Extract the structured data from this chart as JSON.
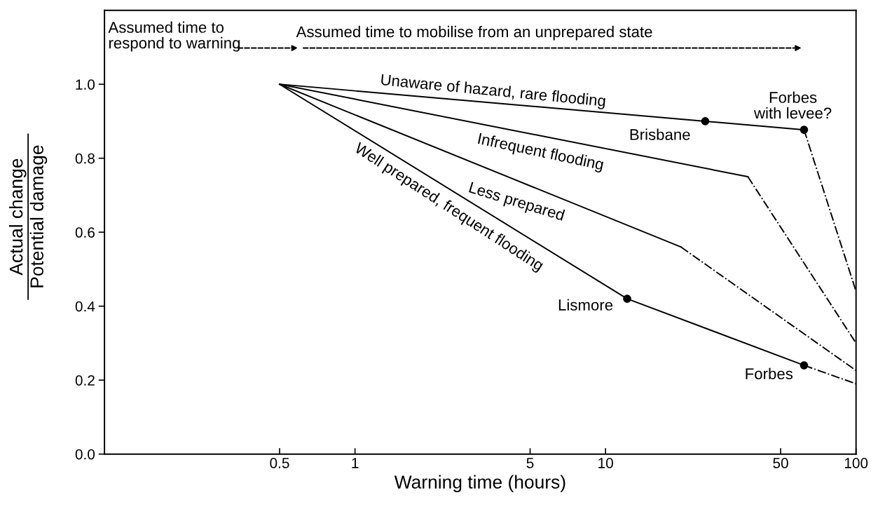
{
  "chart_data": {
    "type": "line",
    "xlabel": "Warning time (hours)",
    "ylabel": "Actual change\nPotential damage",
    "log": "x",
    "xlim": [
      0.1,
      100
    ],
    "xticks": [
      0.5,
      1,
      5,
      10,
      50,
      100
    ],
    "ylim": [
      0,
      1.2
    ],
    "yticks": [
      {
        "value": 0,
        "label": "0.0"
      },
      {
        "value": 0.2,
        "label": "0.2"
      },
      {
        "value": 0.4,
        "label": "0.4"
      },
      {
        "value": 0.6,
        "label": "0.6"
      },
      {
        "value": 0.8,
        "label": "0.8"
      },
      {
        "value": 1.0,
        "label": "1.0"
      }
    ],
    "grid": false,
    "legend": false,
    "series": [
      {
        "color": "#000000",
        "line_style": "solid",
        "x": [
          0.5,
          25,
          62
        ],
        "values": [
          1.0,
          0.9,
          0.877
        ]
      },
      {
        "color": "#000000",
        "line_style": "solid",
        "x": [
          0.5,
          37
        ],
        "values": [
          1.0,
          0.75
        ]
      },
      {
        "color": "#000000",
        "line_style": "solid",
        "x": [
          0.5,
          20
        ],
        "values": [
          1.0,
          0.56
        ]
      },
      {
        "color": "#000000",
        "line_style": "solid",
        "x": [
          0.5,
          12.2,
          62
        ],
        "values": [
          1.0,
          0.42,
          0.24
        ]
      },
      {
        "color": "#000000",
        "line_style": "dashdot",
        "x": [
          62,
          100
        ],
        "values": [
          0.877,
          0.44
        ]
      },
      {
        "color": "#000000",
        "line_style": "dashdot",
        "x": [
          37,
          100
        ],
        "values": [
          0.75,
          0.3
        ]
      },
      {
        "color": "#000000",
        "line_style": "dashdot",
        "x": [
          20,
          100
        ],
        "values": [
          0.56,
          0.226
        ]
      },
      {
        "color": "#000000",
        "line_style": "dashdot",
        "x": [
          62,
          100
        ],
        "values": [
          0.24,
          0.19
        ]
      },
      {
        "type": "scatter",
        "color": "#000000",
        "marker": "circle",
        "x": [
          25,
          62,
          12.2,
          62
        ],
        "values": [
          0.9,
          0.877,
          0.42,
          0.24
        ]
      }
    ],
    "annotations": [
      "Assumed time to\nrespond to warning",
      "Assumed time to mobilise from an unprepared state",
      "Unaware of hazard, rare flooding",
      "Infrequent flooding",
      "Less prepared",
      "Well prepared, frequent flooding",
      "Brisbane",
      "Forbes\nwith levee?",
      "Lismore",
      "Forbes"
    ]
  }
}
